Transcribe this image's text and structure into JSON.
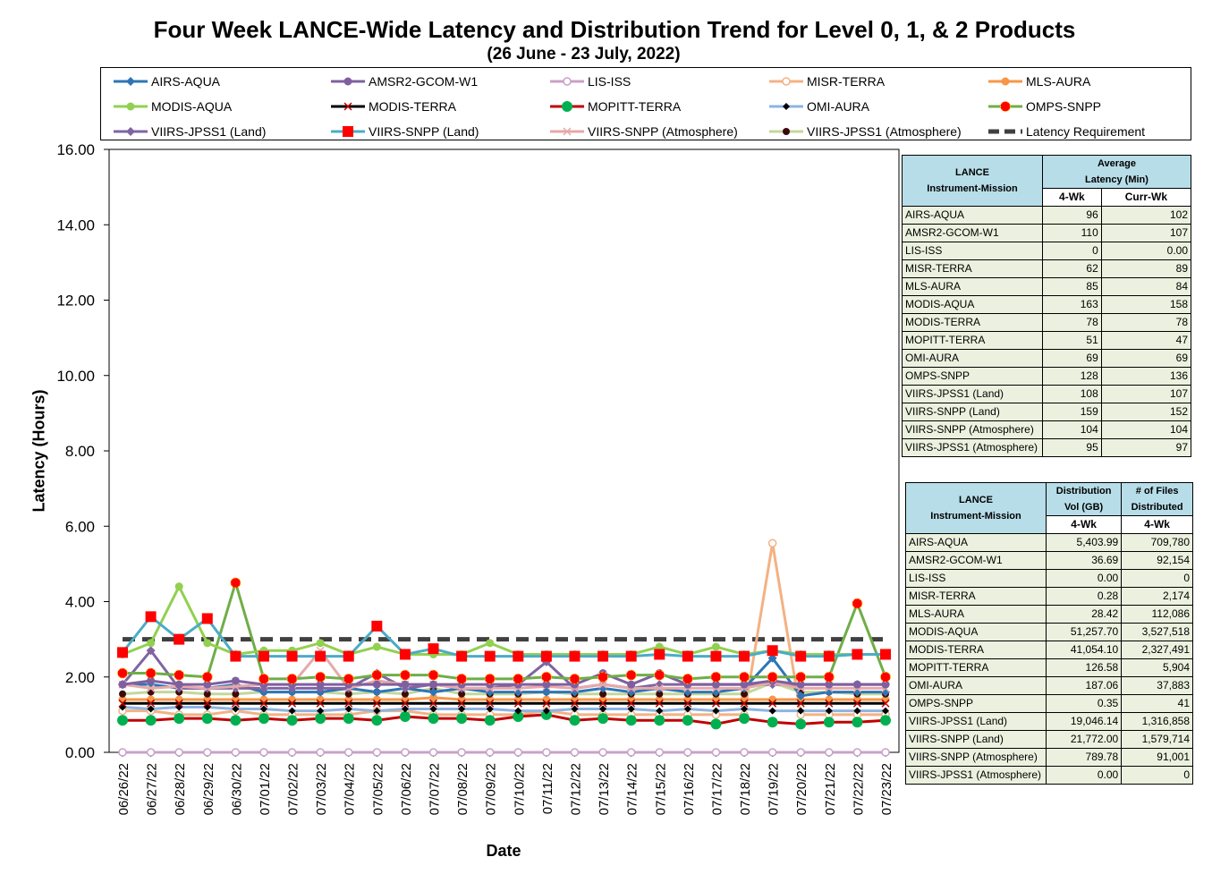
{
  "title": "Four Week LANCE-Wide Latency and Distribution Trend for Level 0, 1, & 2 Products",
  "subtitle": "(26  June   - 23  July,  2022)",
  "chart_data": {
    "type": "line",
    "xlabel": "Date",
    "ylabel": "Latency (Hours)",
    "ylim": [
      0,
      16
    ],
    "yticks": [
      "0.00",
      "2.00",
      "4.00",
      "6.00",
      "8.00",
      "10.00",
      "12.00",
      "14.00",
      "16.00"
    ],
    "categories": [
      "06/26/22",
      "06/27/22",
      "06/28/22",
      "06/29/22",
      "06/30/22",
      "07/01/22",
      "07/02/22",
      "07/03/22",
      "07/04/22",
      "07/05/22",
      "07/06/22",
      "07/07/22",
      "07/08/22",
      "07/09/22",
      "07/10/22",
      "07/11/22",
      "07/12/22",
      "07/13/22",
      "07/14/22",
      "07/15/22",
      "07/16/22",
      "07/17/22",
      "07/18/22",
      "07/19/22",
      "07/20/22",
      "07/21/22",
      "07/22/22",
      "07/23/22"
    ],
    "series": [
      {
        "name": "AIRS-AQUA",
        "color": "#2e75b6",
        "marker": "diamond",
        "values": [
          1.8,
          1.8,
          1.7,
          1.7,
          1.8,
          1.6,
          1.6,
          1.6,
          1.7,
          1.6,
          1.7,
          1.6,
          1.7,
          1.6,
          1.6,
          1.6,
          1.6,
          1.7,
          1.6,
          1.7,
          1.6,
          1.6,
          1.7,
          2.5,
          1.5,
          1.6,
          1.6,
          1.6
        ]
      },
      {
        "name": "AMSR2-GCOM-W1",
        "color": "#7f5fa0",
        "marker": "circle",
        "values": [
          1.8,
          1.9,
          1.8,
          1.8,
          1.9,
          1.8,
          1.8,
          1.8,
          1.8,
          1.8,
          1.8,
          1.8,
          1.8,
          1.8,
          1.8,
          1.8,
          1.8,
          2.1,
          1.8,
          2.1,
          1.8,
          1.8,
          1.8,
          1.9,
          1.8,
          1.8,
          1.8,
          1.8
        ]
      },
      {
        "name": "LIS-ISS",
        "color": "#c9a0c8",
        "marker": "circle-open",
        "values": [
          0,
          0,
          0,
          0,
          0,
          0,
          0,
          0,
          0,
          0,
          0,
          0,
          0,
          0,
          0,
          0,
          0,
          0,
          0,
          0,
          0,
          0,
          0,
          0,
          0,
          0,
          0,
          0
        ]
      },
      {
        "name": "MISR-TERRA",
        "color": "#f4b183",
        "marker": "circle-open",
        "values": [
          1.1,
          1.1,
          1.0,
          1.0,
          1.1,
          1.0,
          1.0,
          1.0,
          1.0,
          1.1,
          1.1,
          1.0,
          1.0,
          1.0,
          1.0,
          1.1,
          1.0,
          1.0,
          1.0,
          1.0,
          1.0,
          1.0,
          1.0,
          5.55,
          1.0,
          1.0,
          1.0,
          1.0
        ]
      },
      {
        "name": "MLS-AURA",
        "color": "#f79646",
        "marker": "circle",
        "values": [
          1.4,
          1.4,
          1.4,
          1.4,
          1.4,
          1.4,
          1.4,
          1.4,
          1.4,
          1.4,
          1.4,
          1.45,
          1.4,
          1.4,
          1.4,
          1.4,
          1.4,
          1.4,
          1.4,
          1.4,
          1.4,
          1.4,
          1.4,
          1.4,
          1.4,
          1.4,
          1.4,
          1.4
        ]
      },
      {
        "name": "MODIS-AQUA",
        "color": "#92d050",
        "marker": "circle",
        "values": [
          2.6,
          2.9,
          4.4,
          2.9,
          2.6,
          2.7,
          2.7,
          2.9,
          2.6,
          2.8,
          2.6,
          2.6,
          2.6,
          2.9,
          2.6,
          2.6,
          2.6,
          2.6,
          2.6,
          2.8,
          2.6,
          2.8,
          2.6,
          2.7,
          2.6,
          2.6,
          2.6,
          2.6
        ]
      },
      {
        "name": "MODIS-TERRA",
        "color": "#000000",
        "marker": "x",
        "values": [
          1.3,
          1.3,
          1.3,
          1.3,
          1.3,
          1.3,
          1.3,
          1.3,
          1.3,
          1.3,
          1.3,
          1.3,
          1.3,
          1.3,
          1.3,
          1.3,
          1.3,
          1.3,
          1.3,
          1.3,
          1.3,
          1.3,
          1.3,
          1.3,
          1.3,
          1.3,
          1.3,
          1.3
        ]
      },
      {
        "name": "MOPITT-TERRA",
        "color": "#c00000",
        "marker": "circle-green",
        "values": [
          0.85,
          0.85,
          0.9,
          0.9,
          0.85,
          0.9,
          0.85,
          0.9,
          0.9,
          0.85,
          0.95,
          0.9,
          0.9,
          0.85,
          0.95,
          1.0,
          0.85,
          0.9,
          0.85,
          0.85,
          0.85,
          0.75,
          0.9,
          0.8,
          0.75,
          0.8,
          0.8,
          0.85
        ]
      },
      {
        "name": "OMI-AURA",
        "color": "#8db4e2",
        "marker": "diamond-black",
        "values": [
          1.2,
          1.15,
          1.2,
          1.2,
          1.15,
          1.15,
          1.1,
          1.1,
          1.15,
          1.1,
          1.15,
          1.15,
          1.15,
          1.15,
          1.1,
          1.1,
          1.15,
          1.15,
          1.15,
          1.1,
          1.15,
          1.1,
          1.15,
          1.1,
          1.1,
          1.1,
          1.1,
          1.1
        ]
      },
      {
        "name": "OMPS-SNPP",
        "color": "#70ad47",
        "marker": "circle-red",
        "values": [
          2.1,
          2.1,
          2.05,
          2.0,
          4.5,
          1.95,
          1.95,
          2.0,
          1.95,
          2.05,
          2.05,
          2.05,
          1.95,
          1.95,
          1.95,
          2.0,
          1.95,
          2.0,
          2.05,
          2.05,
          1.95,
          2.0,
          2.0,
          2.0,
          2.0,
          2.0,
          3.95,
          2.0
        ]
      },
      {
        "name": "VIIRS-JPSS1 (Land)",
        "color": "#8064a2",
        "marker": "diamond",
        "values": [
          1.8,
          2.7,
          1.7,
          1.7,
          1.7,
          1.7,
          1.7,
          1.7,
          1.7,
          2.1,
          1.7,
          1.8,
          1.7,
          1.7,
          1.8,
          2.4,
          1.7,
          1.8,
          1.7,
          1.8,
          1.8,
          1.8,
          1.8,
          1.8,
          1.8,
          1.8,
          1.8,
          1.8
        ]
      },
      {
        "name": "VIIRS-SNPP (Land)",
        "color": "#4bacc6",
        "marker": "square-red",
        "values": [
          2.65,
          3.6,
          3.0,
          3.55,
          2.55,
          2.55,
          2.55,
          2.55,
          2.55,
          3.35,
          2.6,
          2.75,
          2.55,
          2.55,
          2.55,
          2.55,
          2.55,
          2.55,
          2.55,
          2.6,
          2.55,
          2.55,
          2.55,
          2.7,
          2.55,
          2.55,
          2.6,
          2.6
        ]
      },
      {
        "name": "VIIRS-SNPP (Atmosphere)",
        "color": "#e6a9a9",
        "marker": "x-pink",
        "values": [
          1.8,
          1.7,
          1.75,
          1.7,
          1.75,
          1.8,
          1.8,
          2.7,
          1.7,
          1.9,
          1.8,
          1.8,
          1.7,
          1.7,
          1.7,
          1.75,
          1.7,
          1.8,
          1.7,
          1.7,
          1.7,
          1.7,
          1.7,
          1.85,
          1.7,
          1.7,
          1.7,
          1.7
        ]
      },
      {
        "name": "VIIRS-JPSS1 (Atmosphere)",
        "color": "#c4d79b",
        "marker": "circle-darkred",
        "values": [
          1.55,
          1.6,
          1.6,
          1.55,
          1.55,
          1.6,
          1.6,
          1.6,
          1.55,
          1.6,
          1.55,
          1.7,
          1.55,
          1.55,
          1.55,
          1.6,
          1.55,
          1.55,
          1.55,
          1.55,
          1.55,
          1.55,
          1.55,
          1.85,
          1.6,
          1.6,
          1.55,
          1.55
        ]
      },
      {
        "name": "Latency Requirement",
        "color": "#404040",
        "marker": "dash",
        "values": [
          3,
          3,
          3,
          3,
          3,
          3,
          3,
          3,
          3,
          3,
          3,
          3,
          3,
          3,
          3,
          3,
          3,
          3,
          3,
          3,
          3,
          3,
          3,
          3,
          3,
          3,
          3,
          3
        ]
      }
    ]
  },
  "table1": {
    "header_col1": [
      "LANCE",
      "Instrument-Mission"
    ],
    "header_col2": [
      "Average",
      "Latency (Min)"
    ],
    "sub_headers": [
      "4-Wk",
      "Curr-Wk"
    ],
    "rows": [
      {
        "name": "AIRS-AQUA",
        "a": "96",
        "b": "102"
      },
      {
        "name": "AMSR2-GCOM-W1",
        "a": "110",
        "b": "107"
      },
      {
        "name": "LIS-ISS",
        "a": "0",
        "b": "0.00"
      },
      {
        "name": "MISR-TERRA",
        "a": "62",
        "b": "89"
      },
      {
        "name": "MLS-AURA",
        "a": "85",
        "b": "84"
      },
      {
        "name": "MODIS-AQUA",
        "a": "163",
        "b": "158"
      },
      {
        "name": "MODIS-TERRA",
        "a": "78",
        "b": "78"
      },
      {
        "name": "MOPITT-TERRA",
        "a": "51",
        "b": "47"
      },
      {
        "name": "OMI-AURA",
        "a": "69",
        "b": "69"
      },
      {
        "name": "OMPS-SNPP",
        "a": "128",
        "b": "136"
      },
      {
        "name": "VIIRS-JPSS1 (Land)",
        "a": "108",
        "b": "107"
      },
      {
        "name": "VIIRS-SNPP (Land)",
        "a": "159",
        "b": "152"
      },
      {
        "name": "VIIRS-SNPP (Atmosphere)",
        "a": "104",
        "b": "104"
      },
      {
        "name": "VIIRS-JPSS1 (Atmosphere)",
        "a": "95",
        "b": "97"
      }
    ]
  },
  "table2": {
    "header_col1": [
      "LANCE",
      "Instrument-Mission"
    ],
    "header_col2": [
      "Distribution",
      "Vol (GB)"
    ],
    "header_col3": [
      "# of Files",
      "Distributed"
    ],
    "sub_headers": [
      "4-Wk",
      "4-Wk"
    ],
    "rows": [
      {
        "name": "AIRS-AQUA",
        "a": "5,403.99",
        "b": "709,780"
      },
      {
        "name": "AMSR2-GCOM-W1",
        "a": "36.69",
        "b": "92,154"
      },
      {
        "name": "LIS-ISS",
        "a": "0.00",
        "b": "0"
      },
      {
        "name": "MISR-TERRA",
        "a": "0.28",
        "b": "2,174"
      },
      {
        "name": "MLS-AURA",
        "a": "28.42",
        "b": "112,086"
      },
      {
        "name": "MODIS-AQUA",
        "a": "51,257.70",
        "b": "3,527,518"
      },
      {
        "name": "MODIS-TERRA",
        "a": "41,054.10",
        "b": "2,327,491"
      },
      {
        "name": "MOPITT-TERRA",
        "a": "126.58",
        "b": "5,904"
      },
      {
        "name": "OMI-AURA",
        "a": "187.06",
        "b": "37,883"
      },
      {
        "name": "OMPS-SNPP",
        "a": "0.35",
        "b": "41"
      },
      {
        "name": "VIIRS-JPSS1 (Land)",
        "a": "19,046.14",
        "b": "1,316,858"
      },
      {
        "name": "VIIRS-SNPP (Land)",
        "a": "21,772.00",
        "b": "1,579,714"
      },
      {
        "name": "VIIRS-SNPP (Atmosphere)",
        "a": "789.78",
        "b": "91,001"
      },
      {
        "name": "VIIRS-JPSS1 (Atmosphere)",
        "a": "0.00",
        "b": "0"
      }
    ]
  }
}
